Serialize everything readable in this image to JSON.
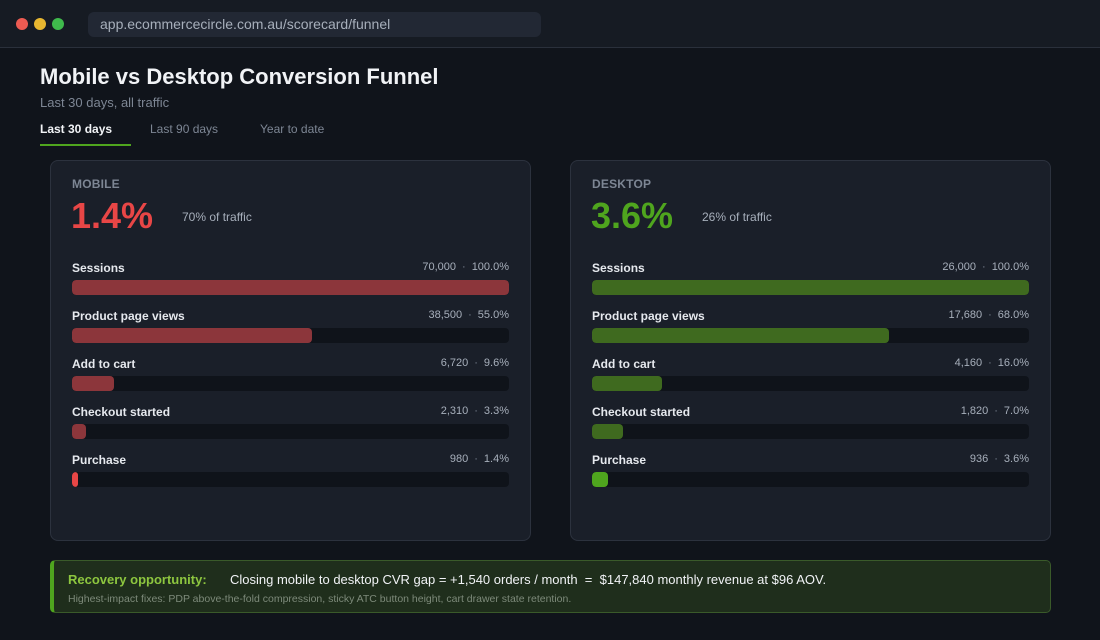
{
  "browser": {
    "url": "app.ecommercecircle.com.au/scorecard/funnel"
  },
  "header": {
    "title": "Mobile vs Desktop Conversion Funnel",
    "subtitle": "Last 30 days, all traffic"
  },
  "tabs": [
    {
      "label": "Last 30 days",
      "active": true
    },
    {
      "label": "Last 90 days",
      "active": false
    },
    {
      "label": "Year to date",
      "active": false
    }
  ],
  "panels": {
    "mobile": {
      "label": "MOBILE",
      "cvr": "1.4%",
      "share": "70% of traffic",
      "accent": "#e84646",
      "steps": [
        {
          "name": "Sessions",
          "count": "70,000",
          "pct": "100.0%",
          "value": 100.0
        },
        {
          "name": "Product page views",
          "count": "38,500",
          "pct": "55.0%",
          "value": 55.0
        },
        {
          "name": "Add to cart",
          "count": "6,720",
          "pct": "9.6%",
          "value": 9.6
        },
        {
          "name": "Checkout started",
          "count": "2,310",
          "pct": "3.3%",
          "value": 3.3
        },
        {
          "name": "Purchase",
          "count": "980",
          "pct": "1.4%",
          "value": 1.4
        }
      ]
    },
    "desktop": {
      "label": "DESKTOP",
      "cvr": "3.6%",
      "share": "26% of traffic",
      "accent": "#4fa51e",
      "steps": [
        {
          "name": "Sessions",
          "count": "26,000",
          "pct": "100.0%",
          "value": 100.0
        },
        {
          "name": "Product page views",
          "count": "17,680",
          "pct": "68.0%",
          "value": 68.0
        },
        {
          "name": "Add to cart",
          "count": "4,160",
          "pct": "16.0%",
          "value": 16.0
        },
        {
          "name": "Checkout started",
          "count": "1,820",
          "pct": "7.0%",
          "value": 7.0
        },
        {
          "name": "Purchase",
          "count": "936",
          "pct": "3.6%",
          "value": 3.6
        }
      ]
    }
  },
  "callout": {
    "label": "Recovery opportunity:",
    "text": "Closing mobile to desktop CVR gap = +1,540 orders / month  =  $147,840 monthly revenue at $96 AOV.",
    "note": "Highest-impact fixes: PDP above-the-fold compression, sticky ATC button height, cart drawer state retention."
  },
  "separator": "·"
}
